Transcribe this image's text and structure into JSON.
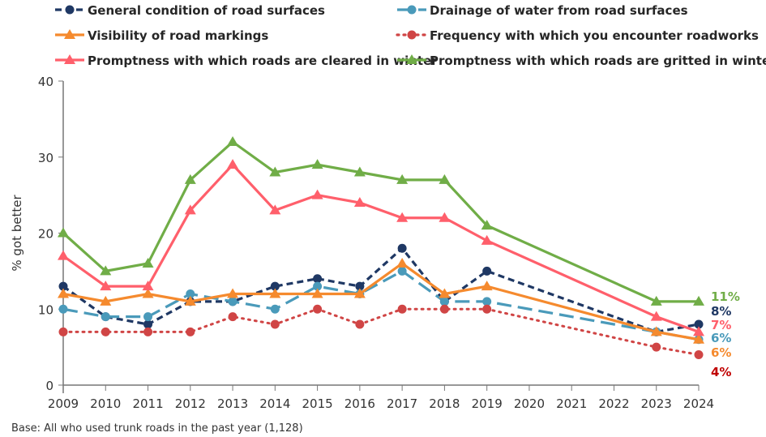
{
  "chart_data": {
    "type": "line",
    "title": "",
    "xlabel": "",
    "ylabel": "% got better",
    "ylim": [
      0,
      40
    ],
    "yticks": [
      0,
      10,
      20,
      30,
      40
    ],
    "x": [
      2009,
      2010,
      2011,
      2012,
      2013,
      2014,
      2015,
      2016,
      2017,
      2018,
      2019,
      2020,
      2021,
      2022,
      2023,
      2024
    ],
    "grid": false,
    "legend_placement": "top",
    "series": [
      {
        "name": "General condition of road surfaces",
        "color": "#1f3864",
        "style": "dashed",
        "marker": "circle",
        "values": [
          13,
          9,
          8,
          11,
          11,
          13,
          14,
          13,
          18,
          11,
          15,
          null,
          null,
          null,
          7,
          8
        ],
        "end_label": "8%"
      },
      {
        "name": "Drainage of water from road surfaces",
        "color": "#4a9aba",
        "style": "longdash",
        "marker": "circle",
        "values": [
          10,
          9,
          9,
          12,
          11,
          10,
          13,
          12,
          15,
          11,
          11,
          null,
          null,
          null,
          7,
          6
        ],
        "end_label": "6%"
      },
      {
        "name": "Visibility of road markings",
        "color": "#f58a2e",
        "style": "solid",
        "marker": "triangle",
        "values": [
          12,
          11,
          12,
          11,
          12,
          12,
          12,
          12,
          16,
          12,
          13,
          null,
          null,
          null,
          7,
          6
        ],
        "end_label": "6%"
      },
      {
        "name": "Frequency with which you encounter roadworks",
        "color": "#d04545",
        "style": "dotted",
        "marker": "circle",
        "values": [
          7,
          7,
          7,
          7,
          9,
          8,
          10,
          8,
          10,
          10,
          10,
          null,
          null,
          null,
          5,
          4
        ],
        "end_label": "4%",
        "end_label_color": "#c00000"
      },
      {
        "name": "Promptness with which roads are cleared in winter",
        "color": "#ff5f6b",
        "style": "solid",
        "marker": "triangle",
        "values": [
          17,
          13,
          13,
          23,
          29,
          23,
          25,
          24,
          22,
          22,
          19,
          null,
          null,
          null,
          9,
          7
        ],
        "end_label": "7%"
      },
      {
        "name": "Promptness with which roads are gritted in winter",
        "color": "#70ad47",
        "style": "solid",
        "marker": "triangle",
        "values": [
          20,
          15,
          16,
          27,
          32,
          28,
          29,
          28,
          27,
          27,
          21,
          null,
          null,
          null,
          11,
          11
        ],
        "end_label": "11%"
      }
    ]
  },
  "footnote": "Base: All who used trunk roads in the past year (1,128)"
}
